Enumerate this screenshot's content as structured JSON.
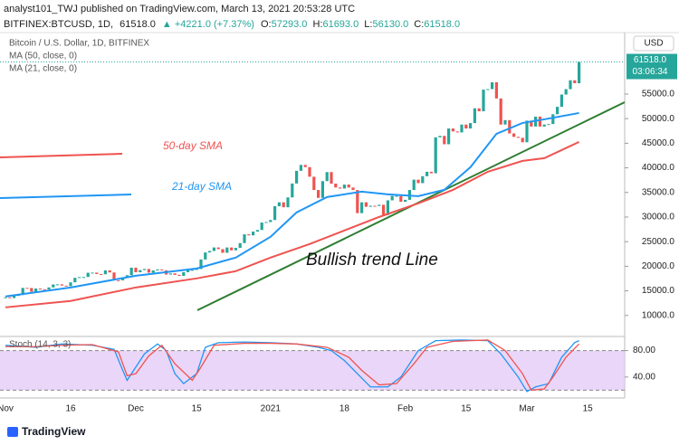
{
  "header": {
    "author": "analyst101_TWJ published on TradingView.com, March 13, 2021 20:53:28 UTC",
    "symbol": "BITFINEX:BTCUSD, 1D,",
    "last": "61518.0",
    "change": "▲ +4221.0 (+7.37%)",
    "ohlc": [
      {
        "label": "O:",
        "value": "57293.0"
      },
      {
        "label": "H:",
        "value": "61693.0"
      },
      {
        "label": "L:",
        "value": "56130.0"
      },
      {
        "label": "C:",
        "value": "61518.0"
      }
    ]
  },
  "footer": {
    "brand": "TradingView"
  },
  "chart_data": [
    {
      "type": "candlestick",
      "title": "Bitcoin / U.S. Dollar, 1D, BITFINEX",
      "currency": "USD",
      "up_color": "#26a69a",
      "down_color": "#ef5350",
      "categories": [
        "Nov",
        null,
        null,
        null,
        null,
        null,
        null,
        null,
        null,
        null,
        null,
        null,
        null,
        null,
        null,
        "16",
        null,
        null,
        null,
        null,
        null,
        null,
        null,
        null,
        null,
        null,
        null,
        null,
        null,
        null,
        "Dec",
        null,
        null,
        null,
        null,
        null,
        null,
        null,
        null,
        null,
        null,
        null,
        null,
        null,
        "15",
        null,
        null,
        null,
        null,
        null,
        null,
        null,
        null,
        null,
        null,
        null,
        null,
        null,
        null,
        null,
        null,
        "2021",
        null,
        null,
        null,
        null,
        null,
        null,
        null,
        null,
        null,
        null,
        null,
        null,
        null,
        null,
        null,
        null,
        "18",
        null,
        null,
        null,
        null,
        null,
        null,
        null,
        null,
        null,
        null,
        null,
        null,
        null,
        "Feb",
        null,
        null,
        null,
        null,
        null,
        null,
        null,
        null,
        null,
        null,
        null,
        null,
        null,
        "15",
        null,
        null,
        null,
        null,
        null,
        null,
        null,
        null,
        null,
        null,
        null,
        null,
        null,
        "Mar",
        null,
        null,
        null,
        null,
        null,
        null,
        null,
        null,
        null,
        null,
        null,
        null,
        null,
        "15",
        null,
        null,
        null,
        null,
        null,
        null,
        null,
        null
      ],
      "values": [
        13700,
        13550,
        14000,
        14150,
        15600,
        15580,
        14830,
        15480,
        15330,
        15300,
        15700,
        16300,
        16320,
        16070,
        15960,
        16730,
        17650,
        17800,
        17820,
        18680,
        18710,
        18420,
        18370,
        19160,
        18740,
        17150,
        17140,
        17720,
        18180,
        19710,
        18790,
        19220,
        19450,
        18700,
        19150,
        19360,
        19170,
        18320,
        18550,
        18250,
        18040,
        18800,
        19170,
        19270,
        19440,
        21380,
        22800,
        23110,
        23820,
        23480,
        22740,
        23820,
        23240,
        23730,
        24710,
        26490,
        26280,
        27040,
        27370,
        28890,
        28990,
        29400,
        32200,
        33000,
        31990,
        33990,
        36820,
        39400,
        40600,
        40150,
        38200,
        35500,
        33900,
        37300,
        39140,
        36800,
        36020,
        35800,
        36600,
        36000,
        35500,
        30800,
        33000,
        32090,
        32290,
        32260,
        32500,
        30400,
        33400,
        34300,
        34300,
        33100,
        33500,
        35500,
        37600,
        36900,
        38300,
        39200,
        38900,
        46200,
        46500,
        44800,
        48000,
        47400,
        47200,
        48800,
        48000,
        49100,
        52100,
        51500,
        55900,
        56000,
        57400,
        54100,
        48800,
        49700,
        47000,
        46300,
        46100,
        45200,
        49600,
        48400,
        50400,
        48400,
        48800,
        48900,
        50900,
        52400,
        54900,
        56000,
        57800,
        57200,
        61518,
        null,
        null,
        null,
        null,
        null,
        null,
        null,
        null,
        null,
        null
      ],
      "last_value_label": "61518.0",
      "countdown": "03:06:34",
      "series": [
        {
          "name": "MA (50, close, 0)",
          "color": "#ef5350",
          "x": [
            0,
            15,
            30,
            44,
            53,
            61,
            70,
            78,
            86,
            95,
            103,
            111,
            119,
            124,
            132
          ],
          "values": [
            11650,
            12940,
            15690,
            17530,
            19000,
            21760,
            24510,
            27270,
            30020,
            32780,
            35530,
            39210,
            41410,
            41960,
            45270
          ]
        },
        {
          "name": "MA (21, close, 0)",
          "color": "#2196f3",
          "x": [
            0,
            15,
            30,
            44,
            53,
            61,
            67,
            74,
            82,
            88,
            95,
            101,
            107,
            113,
            119,
            124,
            132
          ],
          "values": [
            13860,
            15690,
            18080,
            19550,
            21760,
            25980,
            30940,
            34060,
            35170,
            34610,
            34250,
            35530,
            40130,
            46920,
            49130,
            49860,
            51150
          ]
        }
      ],
      "ylim": [
        6100,
        68600
      ],
      "yticks": [
        {
          "value": 10000,
          "label": "10000.0"
        },
        {
          "value": 15000,
          "label": "15000.0"
        },
        {
          "value": 20000,
          "label": "20000.0"
        },
        {
          "value": 25000,
          "label": "25000.0"
        },
        {
          "value": 30000,
          "label": "30000.0"
        },
        {
          "value": 35000,
          "label": "35000.0"
        },
        {
          "value": 40000,
          "label": "40000.0"
        },
        {
          "value": 45000,
          "label": "45000.0"
        },
        {
          "value": 50000,
          "label": "50000.0"
        },
        {
          "value": 55000,
          "label": "55000.0"
        }
      ],
      "annotations": [
        {
          "text": "50-day SMA",
          "color": "#ef5350"
        },
        {
          "text": "21-day SMA",
          "color": "#2196f3"
        },
        {
          "text": "Bullish trend Line",
          "color": "#111111"
        }
      ]
    },
    {
      "type": "line",
      "title": "Stoch (14, 3, 3)",
      "band_color": "#e1c4f5",
      "bands": [
        20,
        80
      ],
      "series": [
        {
          "color": "#2196f3",
          "x": [
            0,
            7,
            13,
            20,
            25,
            27,
            28,
            30,
            32,
            35,
            37,
            39,
            41,
            44,
            46,
            49,
            55,
            61,
            67,
            72,
            75,
            78,
            81,
            84,
            88,
            91,
            95,
            99,
            105,
            111,
            114,
            118,
            120,
            122,
            125,
            128,
            131,
            132
          ],
          "values": [
            88,
            85,
            90,
            88,
            82,
            50,
            35,
            55,
            75,
            90,
            80,
            45,
            30,
            45,
            85,
            92,
            93,
            92,
            90,
            85,
            80,
            65,
            45,
            25,
            25,
            40,
            80,
            95,
            96,
            95,
            75,
            40,
            18,
            25,
            30,
            70,
            92,
            95
          ]
        },
        {
          "color": "#ef5350",
          "x": [
            0,
            7,
            13,
            20,
            26,
            28,
            30,
            33,
            36,
            39,
            43,
            45,
            48,
            55,
            61,
            67,
            74,
            79,
            82,
            86,
            90,
            94,
            97,
            103,
            111,
            115,
            119,
            121,
            124,
            126,
            129,
            132
          ],
          "values": [
            86,
            86,
            88,
            89,
            78,
            42,
            45,
            72,
            88,
            60,
            35,
            55,
            88,
            91,
            91,
            90,
            85,
            70,
            50,
            28,
            30,
            60,
            85,
            94,
            96,
            80,
            45,
            20,
            22,
            40,
            70,
            90
          ]
        }
      ],
      "ylim": [
        11,
        100
      ],
      "yticks": [
        {
          "value": 80,
          "label": "80.00"
        },
        {
          "value": 40,
          "label": "40.00"
        }
      ]
    }
  ]
}
